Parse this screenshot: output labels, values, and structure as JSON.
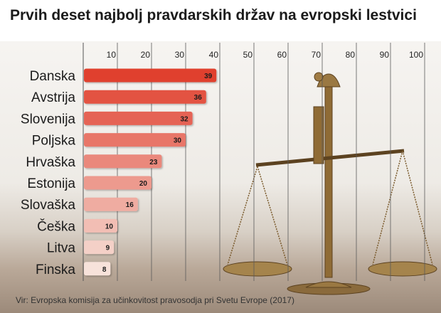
{
  "title": "Prvih deset najbolj pravdarskih držav na evropski lestvici",
  "source": "Vir: Evropska komisija za učinkovitost pravosodja pri Svetu Evrope (2017)",
  "colors": {
    "bar_dark": "#e0402f",
    "bar_light": "#f7e2da",
    "label_text": "#1b1b1b"
  },
  "chart_data": {
    "type": "bar",
    "orientation": "horizontal",
    "categories": [
      "Danska",
      "Avstrija",
      "Slovenija",
      "Poljska",
      "Hrvaška",
      "Estonija",
      "Slovaška",
      "Češka",
      "Litva",
      "Finska"
    ],
    "values": [
      39,
      36,
      32,
      30,
      23,
      20,
      16,
      10,
      9,
      8
    ],
    "xticks": [
      10,
      20,
      30,
      40,
      50,
      60,
      70,
      80,
      90,
      100
    ],
    "xlim": [
      0,
      100
    ],
    "grid": true,
    "data_labels": true
  }
}
